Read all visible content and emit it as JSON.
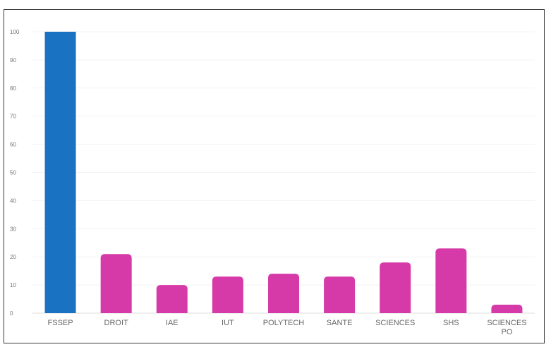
{
  "chart_data": {
    "type": "bar",
    "categories": [
      "FSSEP",
      "DROIT",
      "IAE",
      "IUT",
      "POLYTECH",
      "SANTE",
      "SCIENCES",
      "SHS",
      "SCIENCES PO"
    ],
    "values": [
      100,
      21,
      10,
      13,
      14,
      13,
      18,
      23,
      3
    ],
    "bar_colors": [
      "#1a73c2",
      "#d63aa8",
      "#d63aa8",
      "#d63aa8",
      "#d63aa8",
      "#d63aa8",
      "#d63aa8",
      "#d63aa8",
      "#d63aa8"
    ],
    "ylim": [
      0,
      100
    ],
    "yticks": [
      "0",
      "10",
      "20",
      "30",
      "40",
      "50",
      "60",
      "70",
      "80",
      "90",
      "100"
    ],
    "grid": true,
    "legend": "none",
    "title": "",
    "xlabel": "",
    "ylabel": ""
  }
}
